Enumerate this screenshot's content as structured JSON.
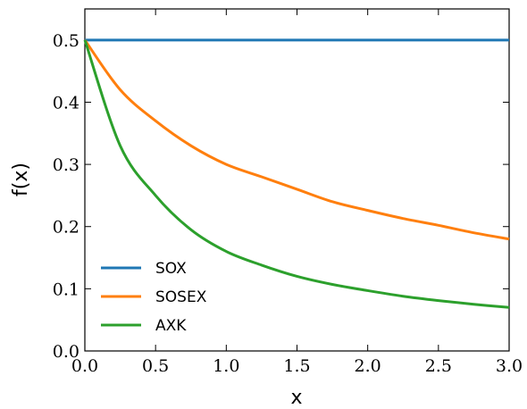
{
  "chart_data": {
    "type": "line",
    "title": "",
    "xlabel": "x",
    "ylabel": "f(x)",
    "xlim": [
      0,
      3
    ],
    "ylim": [
      0,
      0.55
    ],
    "xticks": [
      0,
      0.5,
      1,
      1.5,
      2,
      2.5,
      3
    ],
    "xtick_labels": [
      "0.0",
      "0.5",
      "1.0",
      "1.5",
      "2.0",
      "2.5",
      "3.0"
    ],
    "yticks": [
      0,
      0.1,
      0.2,
      0.3,
      0.4,
      0.5
    ],
    "ytick_labels": [
      "0.0",
      "0.1",
      "0.2",
      "0.3",
      "0.4",
      "0.5"
    ],
    "grid": false,
    "legend_position": "lower-left",
    "x": [
      0,
      0.25,
      0.5,
      0.75,
      1,
      1.25,
      1.5,
      1.75,
      2,
      2.25,
      2.5,
      2.75,
      3
    ],
    "series": [
      {
        "name": "SOX",
        "color": "#1f77b4",
        "values": [
          0.5,
          0.5,
          0.5,
          0.5,
          0.5,
          0.5,
          0.5,
          0.5,
          0.5,
          0.5,
          0.5,
          0.5,
          0.5
        ]
      },
      {
        "name": "SOSEX",
        "color": "#ff7f0e",
        "values": [
          0.5,
          0.42,
          0.37,
          0.33,
          0.3,
          0.28,
          0.26,
          0.24,
          0.226,
          0.213,
          0.202,
          0.19,
          0.18
        ]
      },
      {
        "name": "AXK",
        "color": "#2ca02c",
        "values": [
          0.5,
          0.33,
          0.25,
          0.195,
          0.16,
          0.138,
          0.12,
          0.107,
          0.097,
          0.088,
          0.081,
          0.075,
          0.07
        ]
      }
    ]
  }
}
